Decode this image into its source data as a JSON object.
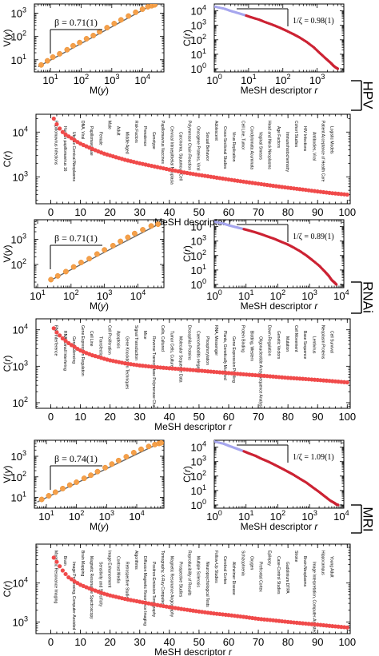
{
  "figure": {
    "groups": [
      "HPV",
      "RNAi",
      "MRI"
    ]
  },
  "chart_data": [
    {
      "id": "hpv-vy",
      "group": "HPV",
      "type": "scatter",
      "xlabel_parts": [
        "M(",
        "y",
        ")"
      ],
      "ylabel_parts": [
        "V(",
        "y",
        ")"
      ],
      "xscale": "log",
      "yscale": "log",
      "xlim": [
        3,
        50000
      ],
      "ylim": [
        3,
        2500
      ],
      "xticks": [
        10,
        100,
        1000,
        10000
      ],
      "yticks": [
        10,
        100,
        1000
      ],
      "annotation": "β = 0.71(1)",
      "fit": {
        "x": [
          4,
          25000
        ],
        "y": [
          5,
          2600
        ]
      },
      "series": [
        {
          "x": [
            5,
            8,
            12,
            20,
            35,
            55,
            90,
            150,
            250,
            400,
            700,
            1200,
            2000,
            3500,
            6000,
            10000,
            15000,
            20000,
            25000
          ],
          "y": [
            6,
            9,
            13,
            18,
            27,
            40,
            55,
            80,
            110,
            160,
            240,
            360,
            520,
            760,
            1100,
            1500,
            1900,
            2100,
            2300
          ]
        }
      ]
    },
    {
      "id": "hpv-cr",
      "group": "HPV",
      "type": "scatter",
      "xlabel": "MeSH descriptor r",
      "ylabel_parts": [
        "C(",
        "r",
        ")"
      ],
      "xscale": "log",
      "yscale": "log",
      "xlim": [
        1,
        6000
      ],
      "ylim": [
        0.6,
        30000
      ],
      "xticks": [
        1,
        10,
        100,
        1000
      ],
      "yticks": [
        1,
        10,
        100,
        1000,
        10000
      ],
      "annotation": "1/ζ = 0.98(1)",
      "series": [
        {
          "x": [
            1,
            2,
            3,
            5,
            8,
            12,
            20,
            30,
            50,
            80,
            120,
            200,
            300,
            500,
            800,
            1200,
            1800,
            2500,
            3000,
            3500,
            4000
          ],
          "y": [
            20000,
            14000,
            10000,
            7000,
            5000,
            3600,
            2500,
            1700,
            1100,
            700,
            450,
            250,
            150,
            70,
            30,
            12,
            5,
            2.5,
            1.6,
            1.2,
            1
          ]
        }
      ]
    },
    {
      "id": "hpv-top",
      "group": "HPV",
      "type": "scatter",
      "xlabel": "MeSH descriptor r",
      "ylabel_parts": [
        "C(",
        "r",
        ")"
      ],
      "xscale": "linear",
      "yscale": "log",
      "xlim": [
        -5,
        101
      ],
      "ylim": [
        250,
        25000
      ],
      "xticks": [
        0,
        10,
        20,
        30,
        40,
        50,
        60,
        70,
        80,
        90,
        100
      ],
      "yticks": [
        1000,
        10000
      ],
      "series": [
        {
          "x": [
            1,
            2,
            3,
            4,
            5,
            6,
            7,
            8,
            9,
            10,
            12,
            14,
            16,
            18,
            20,
            25,
            30,
            35,
            40,
            45,
            50,
            55,
            60,
            65,
            70,
            75,
            80,
            85,
            90,
            95,
            100
          ],
          "y": [
            20000,
            15000,
            12000,
            10000,
            8800,
            8000,
            7300,
            6600,
            6000,
            5500,
            4800,
            4200,
            3700,
            3300,
            3000,
            2400,
            2000,
            1700,
            1450,
            1250,
            1100,
            980,
            870,
            780,
            700,
            630,
            570,
            520,
            470,
            430,
            400
          ]
        }
      ],
      "term_labels": [
        "Papillomavirus Infections",
        "Human papillomavirus 16",
        "Uterine Cervical Neoplasms",
        "DNA, Viral",
        "Papillomaviridae",
        "Female",
        "Male",
        "Adult",
        "Middle Aged",
        "Risk Factors",
        "Prevalence",
        "Genotype",
        "Papillomavirus Vaccines",
        "Cervical Intraepithelial Neoplasia",
        "Carcinoma, Squamous Cell",
        "Polymerase Chain Reaction",
        "Oncogene Proteins, Viral",
        "Sexual Behavior",
        "Adolescent",
        "Cross-Sectional Studies",
        "Virus Replication",
        "Cell Line, Tumor",
        "Condylomata Acuminata",
        "Vaginal Smears",
        "Head and Neck Neoplasms",
        "Age Factors",
        "Immunohistochemistry",
        "Cohort Studies",
        "HIV Infections",
        "Antibodies, Viral",
        "Patient Acceptance of Health Care",
        "Logistic Models"
      ]
    },
    {
      "id": "rnai-vy",
      "group": "RNAi",
      "type": "scatter",
      "xlabel_parts": [
        "M(",
        "y",
        ")"
      ],
      "ylabel_parts": [
        "V(",
        "y",
        ")"
      ],
      "xscale": "log",
      "yscale": "log",
      "xlim": [
        8,
        60000
      ],
      "ylim": [
        12,
        6000
      ],
      "xticks": [
        10,
        100,
        1000,
        10000
      ],
      "yticks": [
        100,
        1000
      ],
      "annotation": "β = 0.71(1)",
      "fit": {
        "x": [
          22,
          45000
        ],
        "y": [
          22,
          4200
        ]
      },
      "series": [
        {
          "x": [
            25,
            40,
            70,
            120,
            200,
            350,
            600,
            1000,
            1800,
            3000,
            5000,
            8000,
            14000,
            25000,
            40000
          ],
          "y": [
            25,
            35,
            52,
            80,
            120,
            170,
            260,
            380,
            560,
            830,
            1200,
            1700,
            2400,
            3400,
            4000
          ]
        }
      ]
    },
    {
      "id": "rnai-cr",
      "group": "RNAi",
      "type": "scatter",
      "xlabel": "MeSH descriptor r",
      "ylabel_parts": [
        "C(",
        "r",
        ")"
      ],
      "xscale": "log",
      "yscale": "log",
      "xlim": [
        1,
        12000
      ],
      "ylim": [
        0.6,
        30000
      ],
      "xticks": [
        1,
        10,
        100,
        1000,
        10000
      ],
      "yticks": [
        1,
        10,
        100,
        1000,
        10000
      ],
      "annotation": "1/ζ = 0.89(1)",
      "series": [
        {
          "x": [
            1,
            2,
            3,
            5,
            8,
            12,
            20,
            30,
            50,
            80,
            120,
            200,
            300,
            500,
            800,
            1200,
            2000,
            3000,
            4000,
            5000,
            6000,
            7000
          ],
          "y": [
            22000,
            16000,
            12000,
            9000,
            7000,
            5500,
            4000,
            3000,
            2000,
            1400,
            950,
            600,
            380,
            200,
            100,
            50,
            20,
            8,
            4,
            2,
            1.4,
            1
          ]
        }
      ]
    },
    {
      "id": "rnai-top",
      "group": "RNAi",
      "type": "scatter",
      "xlabel": "MeSH descriptor r",
      "ylabel_parts": [
        "C(",
        "r",
        ")"
      ],
      "xscale": "linear",
      "yscale": "log",
      "xlim": [
        -5,
        101
      ],
      "ylim": [
        70,
        20000
      ],
      "xticks": [
        0,
        10,
        20,
        30,
        40,
        50,
        60,
        70,
        80,
        90,
        100
      ],
      "yticks": [
        100,
        1000,
        10000
      ],
      "series": [
        {
          "x": [
            1,
            2,
            3,
            4,
            5,
            6,
            7,
            8,
            9,
            10,
            12,
            14,
            16,
            18,
            20,
            25,
            30,
            35,
            40,
            45,
            50,
            55,
            60,
            65,
            70,
            75,
            80,
            85,
            90,
            95,
            100
          ],
          "y": [
            11000,
            8500,
            7000,
            5800,
            5000,
            4300,
            3800,
            3400,
            3000,
            2700,
            2300,
            2000,
            1800,
            1600,
            1450,
            1200,
            1050,
            950,
            880,
            820,
            760,
            700,
            650,
            600,
            560,
            520,
            480,
            450,
            420,
            390,
            360
          ]
        }
      ],
      "term_labels": [
        "RNA Interference",
        "RNA, Small Interfering",
        "Gene Silencing",
        "Gene Expression Regulation",
        "Cell Line",
        "Transfection",
        "Cell Proliferation",
        "Apoptosis",
        "Gene Knockdown Techniques",
        "Signal Transduction",
        "Mice",
        "Reverse Transcriptase Polymerase Chain Reaction",
        "Cells, Cultured",
        "Tumor Cells, Cultured",
        "Molecular Sequence Data",
        "Drosophila Proteins",
        "Caenorhabditis elegans",
        "Phosphorylation",
        "RNA, Messenger",
        "Plants, Genetically Modified",
        "Gene Expression Profiling",
        "Protein Binding",
        "Blotting, Western",
        "Oligonucleotide Array Sequence Analysis",
        "Down-Regulation",
        "Genetic Vectors",
        "Mutation",
        "Cell Movement",
        "Base Sequence",
        "Lentivirus",
        "Neoplasm Proteins",
        "Cell Survival"
      ]
    },
    {
      "id": "mri-vy",
      "group": "MRI",
      "type": "scatter",
      "xlabel_parts": [
        "M(",
        "y",
        ")"
      ],
      "ylabel_parts": [
        "V(",
        "y",
        ")"
      ],
      "xscale": "log",
      "yscale": "log",
      "xlim": [
        4,
        80000
      ],
      "ylim": [
        3,
        6000
      ],
      "xticks": [
        10,
        100,
        1000,
        10000
      ],
      "yticks": [
        10,
        100,
        1000
      ],
      "annotation": "β = 0.74(1)",
      "fit": {
        "x": [
          5,
          70000
        ],
        "y": [
          6,
          5000
        ]
      },
      "series": [
        {
          "x": [
            7,
            12,
            20,
            35,
            60,
            100,
            180,
            300,
            500,
            900,
            1500,
            2500,
            4500,
            8000,
            14000,
            25000,
            40000,
            55000,
            65000
          ],
          "y": [
            8,
            12,
            18,
            27,
            40,
            55,
            85,
            120,
            180,
            280,
            420,
            620,
            950,
            1500,
            2200,
            3000,
            3700,
            4200,
            4500
          ]
        }
      ]
    },
    {
      "id": "mri-cr",
      "group": "MRI",
      "type": "scatter",
      "xlabel": "MeSH descriptor r",
      "ylabel_parts": [
        "C(",
        "r",
        ")"
      ],
      "xscale": "log",
      "yscale": "log",
      "xlim": [
        1,
        12000
      ],
      "ylim": [
        0.6,
        30000
      ],
      "xticks": [
        1,
        10,
        100,
        1000,
        10000
      ],
      "yticks": [
        1,
        10,
        100,
        1000,
        10000
      ],
      "annotation": "1/ζ = 1.09(1)",
      "series": [
        {
          "x": [
            1,
            2,
            3,
            5,
            8,
            12,
            20,
            30,
            50,
            80,
            120,
            200,
            300,
            500,
            800,
            1200,
            2000,
            3000,
            4500,
            6000,
            7000,
            8000
          ],
          "y": [
            25000,
            17000,
            12000,
            8000,
            5500,
            3800,
            2500,
            1600,
            1000,
            600,
            380,
            210,
            130,
            65,
            35,
            18,
            8,
            4,
            2,
            1.4,
            1.1,
            1
          ]
        }
      ]
    },
    {
      "id": "mri-top",
      "group": "MRI",
      "type": "scatter",
      "xlabel": "MeSH descriptor r",
      "ylabel_parts": [
        "C(",
        "r",
        ")"
      ],
      "xscale": "linear",
      "yscale": "log",
      "xlim": [
        -5,
        101
      ],
      "ylim": [
        500,
        100000
      ],
      "xticks": [
        0,
        10,
        20,
        30,
        40,
        50,
        60,
        70,
        80,
        90,
        100
      ],
      "yticks": [
        1000,
        10000
      ],
      "series": [
        {
          "x": [
            1,
            2,
            3,
            4,
            5,
            6,
            7,
            8,
            9,
            10,
            12,
            14,
            16,
            18,
            20,
            25,
            30,
            35,
            40,
            45,
            50,
            55,
            60,
            65,
            70,
            75,
            80,
            85,
            90,
            95,
            100
          ],
          "y": [
            45000,
            35000,
            27000,
            21000,
            17000,
            14000,
            12500,
            11000,
            10000,
            9000,
            7800,
            6800,
            6000,
            5300,
            4800,
            3900,
            3300,
            2800,
            2400,
            2100,
            1850,
            1650,
            1500,
            1350,
            1200,
            1100,
            1000,
            920,
            850,
            780,
            720
          ]
        }
      ],
      "term_labels": [
        "Magnetic Resonance Imaging",
        "Brain",
        "Image Processing, Computer-Assisted",
        "Brain Mapping",
        "Magnetic Resonance Spectroscopy",
        "Sensitivity and Specificity",
        "Image Enhancement",
        "Contrast Media",
        "Retrospective Studies",
        "Algorithms",
        "Diffusion Magnetic Resonance Imaging",
        "Positron-Emission Tomography",
        "Tomography, X-Ray Computed",
        "Magnetic Resonance Angiography",
        "Prospective Studies",
        "Reproducibility of Results",
        "Multiple Sclerosis",
        "Neuropsychological Tests",
        "Follow-Up Studies",
        "Cerebral Cortex",
        "Alzheimer Disease",
        "Schizophrenia",
        "Oxygen",
        "Prefrontal Cortex",
        "Epilepsy",
        "Case-Control Studies",
        "Gadolinium DTPA",
        "Stroke",
        "Brain Neoplasms",
        "Image Interpretation, Computer-Assisted",
        "Hippocampus",
        "Young Adult"
      ]
    }
  ]
}
